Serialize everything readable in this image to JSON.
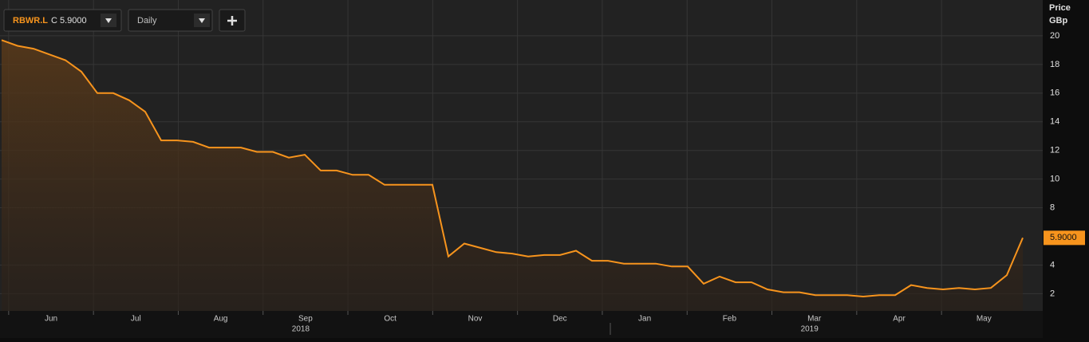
{
  "chart_data": {
    "type": "line",
    "symbol": "RBWR.L",
    "close_text": "C 5.9000",
    "interval": "Daily",
    "y_label": "Price",
    "y_unit": "GBp",
    "months": [
      "Jun",
      "Jul",
      "Aug",
      "Sep",
      "Oct",
      "Nov",
      "Dec",
      "Jan",
      "Feb",
      "Mar",
      "Apr",
      "May"
    ],
    "years": [
      {
        "label": "2018",
        "month_index": 3
      },
      {
        "label": "2019",
        "month_index": 9
      }
    ],
    "series": [
      {
        "name": "RBWR.L",
        "color": "#f7941d",
        "values": [
          19.7,
          19.3,
          19.1,
          18.7,
          18.3,
          17.5,
          16.0,
          16.0,
          15.5,
          14.7,
          12.7,
          12.7,
          12.6,
          12.2,
          12.2,
          12.2,
          11.9,
          11.9,
          11.5,
          11.7,
          10.6,
          10.6,
          10.3,
          10.3,
          9.6,
          9.6,
          9.6,
          9.6,
          4.6,
          5.5,
          5.2,
          4.9,
          4.8,
          4.6,
          4.7,
          4.7,
          5.0,
          4.3,
          4.3,
          4.1,
          4.1,
          4.1,
          3.9,
          3.9,
          2.7,
          3.2,
          2.8,
          2.8,
          2.3,
          2.1,
          2.1,
          1.9,
          1.9,
          1.9,
          1.8,
          1.9,
          1.9,
          2.6,
          2.4,
          2.3,
          2.4,
          2.3,
          2.4,
          3.3,
          5.9
        ],
        "value_labels": [
          null,
          null,
          null,
          null,
          null,
          null,
          null,
          null,
          null,
          null,
          null,
          null,
          null,
          null,
          null,
          null,
          null,
          null,
          null,
          null,
          null,
          null,
          null,
          null,
          null,
          null,
          null,
          null,
          null,
          null,
          null,
          null,
          null,
          null,
          null,
          null,
          null,
          null,
          null,
          null,
          null,
          null,
          null,
          null,
          null,
          null,
          null,
          null,
          null,
          null,
          null,
          null,
          null,
          null,
          null,
          null,
          null,
          null,
          null,
          null,
          null,
          null,
          null,
          null,
          "5.9000"
        ]
      }
    ],
    "ylim": [
      0.8,
      22.5
    ],
    "yticks": [
      2,
      4,
      8,
      10,
      12,
      14,
      16,
      18,
      20
    ],
    "grid": true
  }
}
